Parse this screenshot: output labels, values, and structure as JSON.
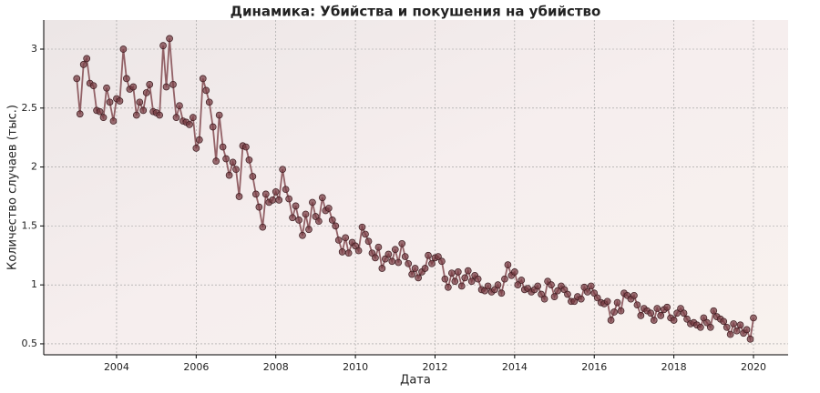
{
  "chart_data": {
    "type": "line",
    "title": "Динамика: Убийства и покушения на убийство",
    "xlabel": "Дата",
    "ylabel": "Количество случаев (тыс.)",
    "x": [
      2003.0,
      2003.08,
      2003.17,
      2003.25,
      2003.33,
      2003.42,
      2003.5,
      2003.58,
      2003.67,
      2003.75,
      2003.83,
      2003.92,
      2004.0,
      2004.08,
      2004.17,
      2004.25,
      2004.33,
      2004.42,
      2004.5,
      2004.58,
      2004.67,
      2004.75,
      2004.83,
      2004.92,
      2005.0,
      2005.08,
      2005.17,
      2005.25,
      2005.33,
      2005.42,
      2005.5,
      2005.58,
      2005.67,
      2005.75,
      2005.83,
      2005.92,
      2006.0,
      2006.08,
      2006.17,
      2006.25,
      2006.33,
      2006.42,
      2006.5,
      2006.58,
      2006.67,
      2006.75,
      2006.83,
      2006.92,
      2007.0,
      2007.08,
      2007.17,
      2007.25,
      2007.33,
      2007.42,
      2007.5,
      2007.58,
      2007.67,
      2007.75,
      2007.83,
      2007.92,
      2008.0,
      2008.08,
      2008.17,
      2008.25,
      2008.33,
      2008.42,
      2008.5,
      2008.58,
      2008.67,
      2008.75,
      2008.83,
      2008.92,
      2009.0,
      2009.08,
      2009.17,
      2009.25,
      2009.33,
      2009.42,
      2009.5,
      2009.58,
      2009.67,
      2009.75,
      2009.83,
      2009.92,
      2010.0,
      2010.08,
      2010.17,
      2010.25,
      2010.33,
      2010.42,
      2010.5,
      2010.58,
      2010.67,
      2010.75,
      2010.83,
      2010.92,
      2011.0,
      2011.08,
      2011.17,
      2011.25,
      2011.33,
      2011.42,
      2011.5,
      2011.58,
      2011.67,
      2011.75,
      2011.83,
      2011.92,
      2012.0,
      2012.08,
      2012.17,
      2012.25,
      2012.33,
      2012.42,
      2012.5,
      2012.58,
      2012.67,
      2012.75,
      2012.83,
      2012.92,
      2013.0,
      2013.08,
      2013.17,
      2013.25,
      2013.33,
      2013.42,
      2013.5,
      2013.58,
      2013.67,
      2013.75,
      2013.83,
      2013.92,
      2014.0,
      2014.08,
      2014.17,
      2014.25,
      2014.33,
      2014.42,
      2014.5,
      2014.58,
      2014.67,
      2014.75,
      2014.83,
      2014.92,
      2015.0,
      2015.08,
      2015.17,
      2015.25,
      2015.33,
      2015.42,
      2015.5,
      2015.58,
      2015.67,
      2015.75,
      2015.83,
      2015.92,
      2016.0,
      2016.08,
      2016.17,
      2016.25,
      2016.33,
      2016.42,
      2016.5,
      2016.58,
      2016.67,
      2016.75,
      2016.83,
      2016.92,
      2017.0,
      2017.08,
      2017.17,
      2017.25,
      2017.33,
      2017.42,
      2017.5,
      2017.58,
      2017.67,
      2017.75,
      2017.83,
      2017.92,
      2018.0,
      2018.08,
      2018.17,
      2018.25,
      2018.33,
      2018.42,
      2018.5,
      2018.58,
      2018.67,
      2018.75,
      2018.83,
      2018.92,
      2019.0,
      2019.08,
      2019.17,
      2019.25,
      2019.33,
      2019.42,
      2019.5,
      2019.58,
      2019.67,
      2019.75,
      2019.83,
      2019.92,
      2020.0
    ],
    "values": [
      2.75,
      2.45,
      2.87,
      2.92,
      2.71,
      2.69,
      2.48,
      2.47,
      2.42,
      2.67,
      2.55,
      2.39,
      2.58,
      2.56,
      3.0,
      2.75,
      2.66,
      2.68,
      2.44,
      2.55,
      2.48,
      2.63,
      2.7,
      2.47,
      2.46,
      2.44,
      3.03,
      2.68,
      3.09,
      2.7,
      2.42,
      2.52,
      2.39,
      2.38,
      2.36,
      2.42,
      2.16,
      2.23,
      2.75,
      2.65,
      2.55,
      2.34,
      2.05,
      2.44,
      2.17,
      2.07,
      1.93,
      2.04,
      1.98,
      1.75,
      2.18,
      2.17,
      2.06,
      1.92,
      1.77,
      1.66,
      1.49,
      1.77,
      1.7,
      1.72,
      1.79,
      1.72,
      1.98,
      1.81,
      1.73,
      1.57,
      1.67,
      1.55,
      1.42,
      1.6,
      1.47,
      1.7,
      1.58,
      1.54,
      1.74,
      1.63,
      1.65,
      1.55,
      1.5,
      1.38,
      1.28,
      1.4,
      1.27,
      1.36,
      1.33,
      1.29,
      1.49,
      1.43,
      1.37,
      1.27,
      1.23,
      1.32,
      1.14,
      1.22,
      1.26,
      1.2,
      1.3,
      1.19,
      1.35,
      1.24,
      1.18,
      1.09,
      1.14,
      1.06,
      1.11,
      1.14,
      1.25,
      1.18,
      1.23,
      1.24,
      1.2,
      1.05,
      0.98,
      1.1,
      1.03,
      1.11,
      0.99,
      1.06,
      1.12,
      1.03,
      1.08,
      1.05,
      0.96,
      0.95,
      0.99,
      0.94,
      0.96,
      1.0,
      0.93,
      1.05,
      1.17,
      1.08,
      1.11,
      1.0,
      1.04,
      0.96,
      0.97,
      0.94,
      0.96,
      0.99,
      0.92,
      0.88,
      1.03,
      1.0,
      0.9,
      0.95,
      0.99,
      0.96,
      0.92,
      0.86,
      0.86,
      0.9,
      0.88,
      0.98,
      0.94,
      0.99,
      0.93,
      0.89,
      0.85,
      0.84,
      0.86,
      0.7,
      0.77,
      0.85,
      0.78,
      0.93,
      0.91,
      0.88,
      0.91,
      0.83,
      0.74,
      0.8,
      0.78,
      0.76,
      0.7,
      0.8,
      0.74,
      0.79,
      0.81,
      0.72,
      0.7,
      0.76,
      0.8,
      0.76,
      0.71,
      0.67,
      0.68,
      0.66,
      0.64,
      0.72,
      0.68,
      0.64,
      0.78,
      0.73,
      0.71,
      0.69,
      0.64,
      0.58,
      0.67,
      0.61,
      0.66,
      0.59,
      0.62,
      0.54,
      0.72
    ],
    "color": "#7a3f45",
    "xlim": [
      2002.17,
      2020.87
    ],
    "xticks": [
      2004,
      2006,
      2008,
      2010,
      2012,
      2014,
      2016,
      2018,
      2020
    ],
    "ylim": [
      0.407,
      3.247
    ],
    "yticks": [
      0.5,
      1.0,
      1.5,
      2.0,
      2.5,
      3.0
    ],
    "grid": true
  }
}
